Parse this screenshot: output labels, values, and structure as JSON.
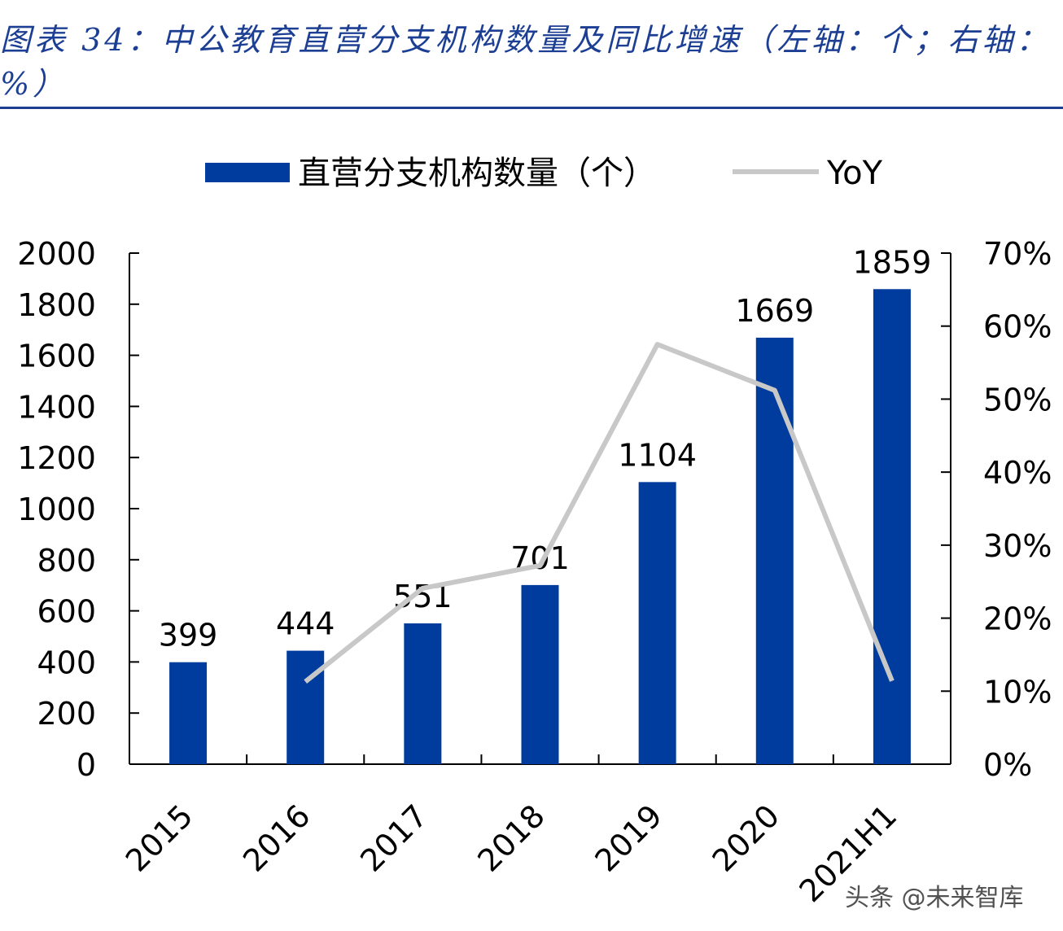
{
  "title": "图表 34：中公教育直营分支机构数量及同比增速（左轴：个；右轴：%）",
  "watermark": "头条 @未来智库",
  "colors": {
    "bar": "#003c9d",
    "line": "#c8c8c8",
    "title": "#1c3f94"
  },
  "chart_data": {
    "type": "bar+line",
    "categories": [
      "2015",
      "2016",
      "2017",
      "2018",
      "2019",
      "2020",
      "2021H1"
    ],
    "series": [
      {
        "name": "直营分支机构数量（个）",
        "type": "bar",
        "axis": "left",
        "values": [
          399,
          444,
          551,
          701,
          1104,
          1669,
          1859
        ]
      },
      {
        "name": "YoY",
        "type": "line",
        "axis": "right",
        "values": [
          null,
          11.3,
          24.1,
          27.2,
          57.5,
          51.2,
          11.4
        ]
      }
    ],
    "left_axis": {
      "ylim": [
        0,
        2000
      ],
      "ticks": [
        "0",
        "200",
        "400",
        "600",
        "800",
        "1000",
        "1200",
        "1400",
        "1600",
        "1800",
        "2000"
      ]
    },
    "right_axis": {
      "ylim": [
        0,
        70
      ],
      "ticks": [
        "0%",
        "10%",
        "20%",
        "30%",
        "40%",
        "50%",
        "60%",
        "70%"
      ]
    },
    "data_labels": [
      "399",
      "444",
      "551",
      "701",
      "1104",
      "1669",
      "1859"
    ],
    "legend": {
      "placement": "top",
      "entries": [
        "直营分支机构数量（个）",
        "YoY"
      ]
    },
    "grid": false
  }
}
